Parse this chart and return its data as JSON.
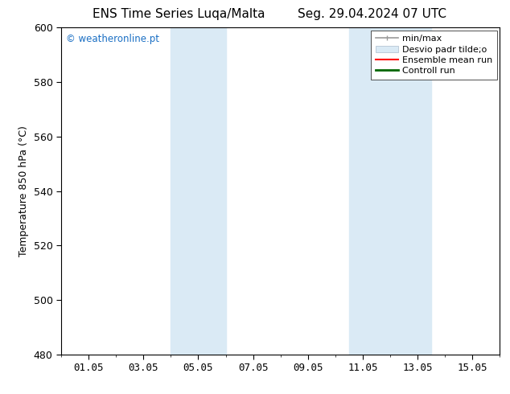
{
  "title_left": "ENS Time Series Luqa/Malta",
  "title_right": "Seg. 29.04.2024 07 UTC",
  "ylabel": "Temperature 850 hPa (°C)",
  "ylim": [
    480,
    600
  ],
  "yticks": [
    480,
    500,
    520,
    540,
    560,
    580,
    600
  ],
  "xlim_start": 0.0,
  "xlim_end": 16.0,
  "xtick_positions": [
    1,
    3,
    5,
    7,
    9,
    11,
    13,
    15
  ],
  "xtick_labels": [
    "01.05",
    "03.05",
    "05.05",
    "07.05",
    "09.05",
    "11.05",
    "13.05",
    "15.05"
  ],
  "shaded_bands": [
    {
      "xmin": 4.0,
      "xmax": 6.0
    },
    {
      "xmin": 10.5,
      "xmax": 13.5
    }
  ],
  "shaded_color": "#daeaf5",
  "background_color": "#ffffff",
  "plot_bg_color": "#ffffff",
  "watermark_text": "© weatheronline.pt",
  "watermark_color": "#1a6fc4",
  "legend_label_minmax": "min/max",
  "legend_label_desvio": "Desvio padr tilde;o",
  "legend_label_ensemble": "Ensemble mean run",
  "legend_label_control": "Controll run",
  "legend_color_minmax": "#999999",
  "legend_color_desvio": "#daeaf5",
  "legend_color_ensemble": "#ff0000",
  "legend_color_control": "#006600",
  "title_fontsize": 11,
  "axis_label_fontsize": 9,
  "tick_fontsize": 9,
  "legend_fontsize": 8
}
